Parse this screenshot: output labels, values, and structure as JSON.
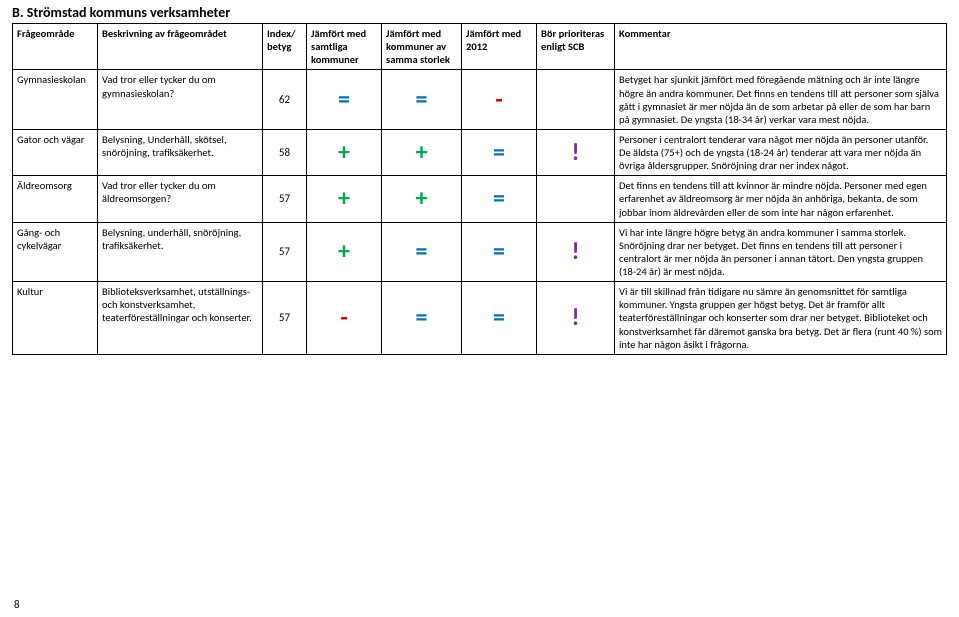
{
  "section_title": "B. Strömstad kommuns verksamheter",
  "page_number": "8",
  "headers": {
    "c1": "Frågeområde",
    "c2": "Beskrivning av frågeområdet",
    "c3": "Index/ betyg",
    "c4": "Jämfört med samtliga kommuner",
    "c5": "Jämfört med kommuner av samma storlek",
    "c6": "Jämfört med 2012",
    "c7": "Bör prioriteras enligt SCB",
    "c8": "Kommentar"
  },
  "symbol_colors": {
    "plus": "#00a84f",
    "minus": "#d60000",
    "equal": "#0070c0",
    "bang": "#7030a0"
  },
  "rows": [
    {
      "area": "Gymnasieskolan",
      "desc": "Vad tror eller tycker du om gymnasieskolan?",
      "index": "62",
      "s1": "=",
      "s2": "=",
      "s3": "-",
      "s4": "",
      "comment": "Betyget har sjunkit jämfört med föregående mätning och är inte längre högre än andra kommuner. Det finns en tendens till att personer som själva gått i gymnasiet är mer nöjda än de som arbetar på eller de som har barn på gymnasiet. De yngsta (18-34 år) verkar vara mest nöjda."
    },
    {
      "area": "Gator och vägar",
      "desc": "Belysning, Underhåll, skötsel, snöröjning, trafiksäkerhet.",
      "index": "58",
      "s1": "+",
      "s2": "+",
      "s3": "=",
      "s4": "!",
      "comment": "Personer i centralort tenderar vara något mer nöjda än personer utanför. De äldsta (75+) och de yngsta (18-24 år) tenderar att vara mer nöjda än övriga åldersgrupper. Snöröjning drar ner index något."
    },
    {
      "area": "Äldreomsorg",
      "desc": "Vad tror eller tycker du om äldreomsorgen?",
      "index": "57",
      "s1": "+",
      "s2": "+",
      "s3": "=",
      "s4": "",
      "comment": "Det finns en tendens till att kvinnor är mindre nöjda. Personer med egen erfarenhet av äldreomsorg är mer nöjda än anhöriga, bekanta, de som jobbar inom äldrevården eller de som inte har någon erfarenhet."
    },
    {
      "area": "Gång- och cykelvägar",
      "desc": "Belysning, underhåll, snöröjning, trafiksäkerhet.",
      "index": "57",
      "s1": "+",
      "s2": "=",
      "s3": "=",
      "s4": "!",
      "comment": "Vi har inte längre högre betyg än andra kommuner i samma storlek. Snöröjning drar ner betyget. Det finns en tendens till att personer i centralort är mer nöjda än personer i annan tätort. Den yngsta gruppen (18-24 år) är mest nöjda."
    },
    {
      "area": "Kultur",
      "desc": "Biblioteksverksamhet, utställnings- och konstverksamhet, teaterföreställningar och konserter.",
      "index": "57",
      "s1": "-",
      "s2": "=",
      "s3": "=",
      "s4": "!",
      "comment": "Vi är till skillnad från tidigare nu sämre än genomsnittet för samtliga kommuner. Yngsta gruppen ger högst betyg. Det är framför allt teaterföreställningar och konserter som drar ner betyget. Biblioteket och konstverksamhet får däremot ganska bra betyg. Det är flera (runt 40 %) som inte har någon åsikt i frågorna."
    }
  ]
}
